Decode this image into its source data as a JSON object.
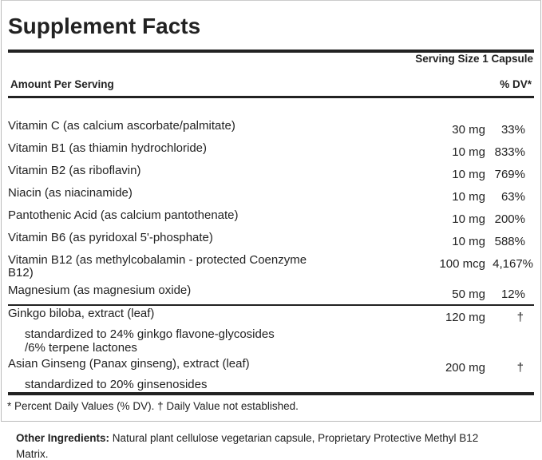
{
  "title": "Supplement Facts",
  "serving_size": "Serving Size 1 Capsule",
  "amount_per_serving": "Amount Per Serving",
  "dv_header": "% DV*",
  "vitamins": [
    {
      "name": "Vitamin C (as calcium ascorbate/palmitate)",
      "amount": "30 mg",
      "dv": "33%"
    },
    {
      "name": "Vitamin B1 (as thiamin hydrochloride)",
      "amount": "10 mg",
      "dv": "833%"
    },
    {
      "name": "Vitamin B2 (as riboflavin)",
      "amount": "10 mg",
      "dv": "769%"
    },
    {
      "name": "Niacin (as niacinamide)",
      "amount": "10 mg",
      "dv": "63%"
    },
    {
      "name": "Pantothenic Acid (as calcium pantothenate)",
      "amount": "10 mg",
      "dv": "200%"
    },
    {
      "name": "Vitamin B6 (as pyridoxal 5'-phosphate)",
      "amount": "10 mg",
      "dv": "588%"
    },
    {
      "name": "Vitamin B12 (as methylcobalamin - protected Coenzyme",
      "name2": "B12)",
      "amount": "100 mcg",
      "dv": "4,167%"
    },
    {
      "name": "Magnesium (as magnesium oxide)",
      "amount": "50 mg",
      "dv": "12%"
    }
  ],
  "herbs": [
    {
      "name": "Ginkgo biloba, extract (leaf)",
      "amount": "120 mg",
      "dv": "†",
      "note": "standardized to 24% ginkgo flavone-glycosides",
      "note2": "/6% terpene lactones"
    },
    {
      "name": "Asian Ginseng (Panax ginseng), extract (leaf)",
      "amount": "200 mg",
      "dv": "†",
      "note": "standardized to 20% ginsenosides"
    }
  ],
  "footnote": "* Percent Daily Values (% DV). † Daily Value not established.",
  "other_label": "Other Ingredients:",
  "other_text": " Natural plant cellulose vegetarian capsule, Proprietary Protective Methyl B12",
  "other_text2": "Matrix."
}
